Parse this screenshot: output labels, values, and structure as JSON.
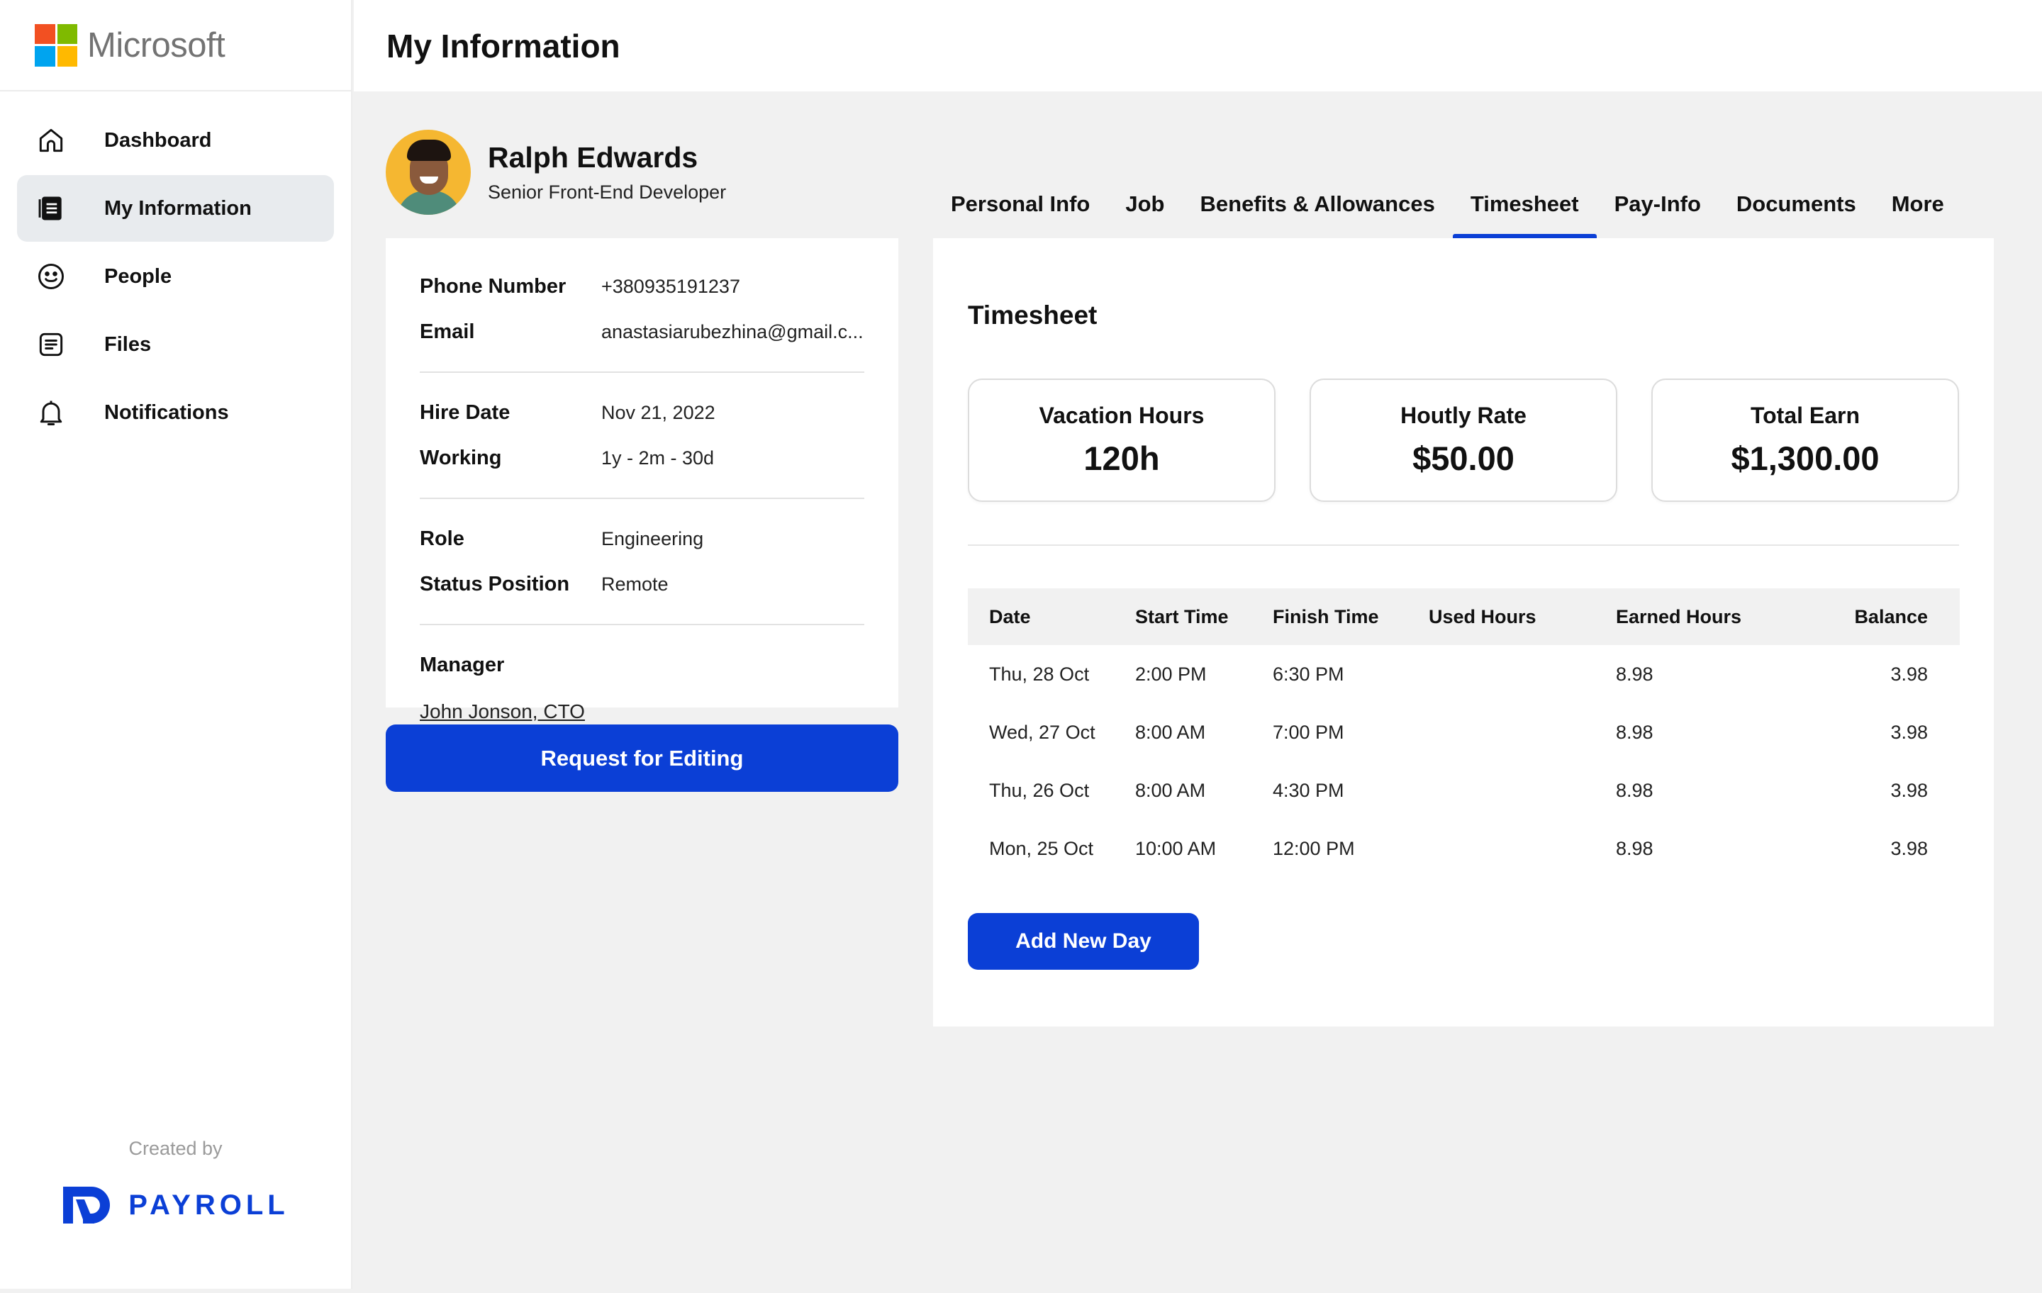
{
  "brand": {
    "name": "Microsoft"
  },
  "page_title": "My Information",
  "sidebar": {
    "items": [
      {
        "label": "Dashboard",
        "icon": "home-icon",
        "active": false
      },
      {
        "label": "My Information",
        "icon": "id-card-icon",
        "active": true
      },
      {
        "label": "People",
        "icon": "smiley-icon",
        "active": false
      },
      {
        "label": "Files",
        "icon": "file-icon",
        "active": false
      },
      {
        "label": "Notifications",
        "icon": "bell-icon",
        "active": false
      }
    ],
    "credit_label": "Created by",
    "credit_brand": "PAYROLL"
  },
  "profile": {
    "name": "Ralph Edwards",
    "role": "Senior Front-End Developer"
  },
  "info": {
    "phone_label": "Phone Number",
    "phone_value": "+380935191237",
    "email_label": "Email",
    "email_value": "anastasiarubezhina@gmail.c...",
    "hire_label": "Hire Date",
    "hire_value": "Nov 21, 2022",
    "working_label": "Working",
    "working_value": "1y - 2m - 30d",
    "role_label": "Role",
    "role_value": "Engineering",
    "status_label": "Status Position",
    "status_value": "Remote",
    "manager_label": "Manager",
    "manager_value": "John Jonson, CTO"
  },
  "request_button": "Request for Editing",
  "tabs": [
    {
      "label": "Personal Info",
      "active": false
    },
    {
      "label": "Job",
      "active": false
    },
    {
      "label": "Benefits & Allowances",
      "active": false
    },
    {
      "label": "Timesheet",
      "active": true
    },
    {
      "label": "Pay-Info",
      "active": false
    },
    {
      "label": "Documents",
      "active": false
    },
    {
      "label": "More",
      "active": false
    }
  ],
  "timesheet": {
    "title": "Timesheet",
    "stats": [
      {
        "label": "Vacation Hours",
        "value": "120h"
      },
      {
        "label": "Houtly Rate",
        "value": "$50.00"
      },
      {
        "label": "Total Earn",
        "value": "$1,300.00"
      }
    ],
    "columns": [
      "Date",
      "Start Time",
      "Finish Time",
      "Used Hours",
      "Earned Hours",
      "Balance"
    ],
    "rows": [
      {
        "date": "Thu, 28 Oct",
        "start": "2:00 PM",
        "finish": "6:30 PM",
        "used": "",
        "earned": "8.98",
        "balance": "3.98"
      },
      {
        "date": "Wed, 27 Oct",
        "start": "8:00 AM",
        "finish": "7:00 PM",
        "used": "",
        "earned": "8.98",
        "balance": "3.98"
      },
      {
        "date": "Thu, 26 Oct",
        "start": "8:00 AM",
        "finish": "4:30 PM",
        "used": "",
        "earned": "8.98",
        "balance": "3.98"
      },
      {
        "date": "Mon, 25 Oct",
        "start": "10:00 AM",
        "finish": "12:00 PM",
        "used": "",
        "earned": "8.98",
        "balance": "3.98"
      }
    ],
    "add_button": "Add New Day"
  },
  "colors": {
    "accent": "#0b3fd6",
    "active_nav_bg": "#e8ebee",
    "page_bg": "#f1f1f1"
  }
}
